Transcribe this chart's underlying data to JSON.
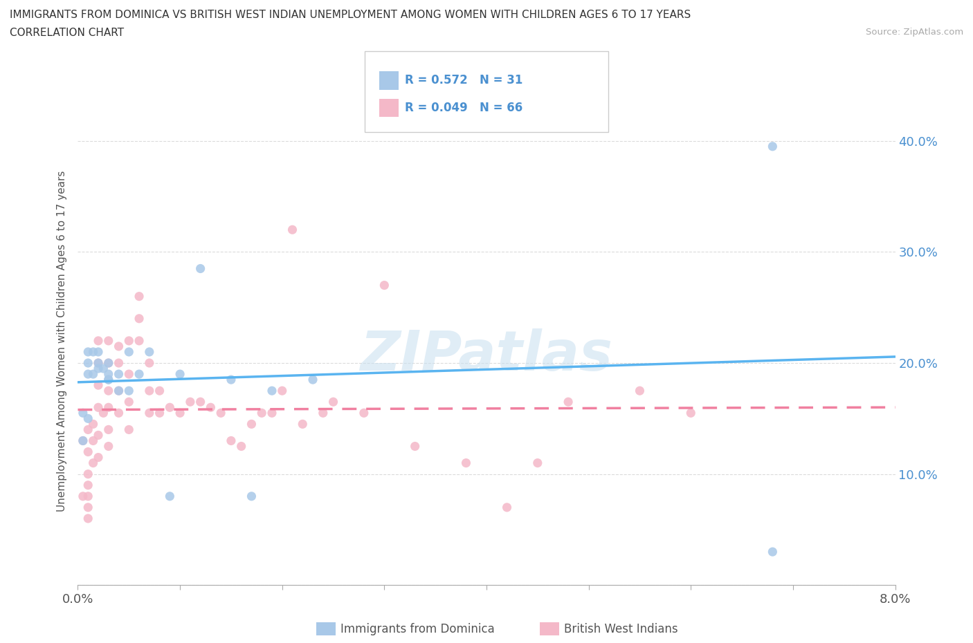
{
  "title_line1": "IMMIGRANTS FROM DOMINICA VS BRITISH WEST INDIAN UNEMPLOYMENT AMONG WOMEN WITH CHILDREN AGES 6 TO 17 YEARS",
  "title_line2": "CORRELATION CHART",
  "source": "Source: ZipAtlas.com",
  "ylabel": "Unemployment Among Women with Children Ages 6 to 17 years",
  "xlim": [
    0.0,
    0.08
  ],
  "ylim": [
    0.0,
    0.44
  ],
  "xticks": [
    0.0,
    0.01,
    0.02,
    0.03,
    0.04,
    0.05,
    0.06,
    0.07,
    0.08
  ],
  "xtick_labels": [
    "0.0%",
    "",
    "",
    "",
    "",
    "",
    "",
    "",
    "8.0%"
  ],
  "yticks": [
    0.0,
    0.1,
    0.2,
    0.3,
    0.4
  ],
  "ytick_labels": [
    "",
    "10.0%",
    "20.0%",
    "30.0%",
    "40.0%"
  ],
  "blue_color": "#a8c8e8",
  "pink_color": "#f4b8c8",
  "blue_line_color": "#5ab4f0",
  "pink_line_color": "#f080a0",
  "blue_text_color": "#4a90d0",
  "watermark": "ZIPatlas",
  "marker_size": 90,
  "dominica_x": [
    0.0005,
    0.0005,
    0.001,
    0.001,
    0.001,
    0.001,
    0.0015,
    0.0015,
    0.002,
    0.002,
    0.002,
    0.0025,
    0.003,
    0.003,
    0.003,
    0.003,
    0.004,
    0.004,
    0.005,
    0.005,
    0.006,
    0.007,
    0.009,
    0.01,
    0.012,
    0.015,
    0.017,
    0.019,
    0.023,
    0.068,
    0.068
  ],
  "dominica_y": [
    0.155,
    0.13,
    0.15,
    0.19,
    0.2,
    0.21,
    0.19,
    0.21,
    0.195,
    0.2,
    0.21,
    0.195,
    0.185,
    0.185,
    0.19,
    0.2,
    0.175,
    0.19,
    0.175,
    0.21,
    0.19,
    0.21,
    0.08,
    0.19,
    0.285,
    0.185,
    0.08,
    0.175,
    0.185,
    0.395,
    0.03
  ],
  "bwi_x": [
    0.0005,
    0.0005,
    0.001,
    0.001,
    0.001,
    0.001,
    0.001,
    0.001,
    0.001,
    0.0015,
    0.0015,
    0.0015,
    0.002,
    0.002,
    0.002,
    0.002,
    0.002,
    0.002,
    0.0025,
    0.003,
    0.003,
    0.003,
    0.003,
    0.003,
    0.003,
    0.004,
    0.004,
    0.004,
    0.004,
    0.005,
    0.005,
    0.005,
    0.005,
    0.006,
    0.006,
    0.006,
    0.007,
    0.007,
    0.007,
    0.008,
    0.008,
    0.009,
    0.01,
    0.011,
    0.012,
    0.013,
    0.014,
    0.015,
    0.016,
    0.017,
    0.018,
    0.019,
    0.02,
    0.021,
    0.022,
    0.024,
    0.025,
    0.028,
    0.03,
    0.033,
    0.038,
    0.042,
    0.045,
    0.048,
    0.055,
    0.06
  ],
  "bwi_y": [
    0.13,
    0.08,
    0.14,
    0.12,
    0.1,
    0.09,
    0.08,
    0.07,
    0.06,
    0.145,
    0.13,
    0.11,
    0.22,
    0.2,
    0.18,
    0.16,
    0.135,
    0.115,
    0.155,
    0.22,
    0.2,
    0.175,
    0.16,
    0.14,
    0.125,
    0.215,
    0.2,
    0.175,
    0.155,
    0.22,
    0.19,
    0.165,
    0.14,
    0.26,
    0.24,
    0.22,
    0.2,
    0.175,
    0.155,
    0.175,
    0.155,
    0.16,
    0.155,
    0.165,
    0.165,
    0.16,
    0.155,
    0.13,
    0.125,
    0.145,
    0.155,
    0.155,
    0.175,
    0.32,
    0.145,
    0.155,
    0.165,
    0.155,
    0.27,
    0.125,
    0.11,
    0.07,
    0.11,
    0.165,
    0.175,
    0.155
  ]
}
